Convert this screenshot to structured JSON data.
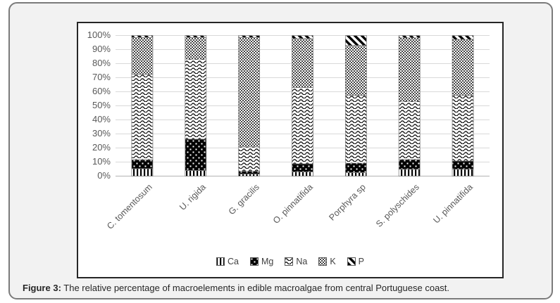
{
  "chart_data": {
    "type": "bar",
    "subtype": "stacked-100-percent",
    "title": "",
    "xlabel": "",
    "ylabel": "",
    "ylim": [
      0,
      100
    ],
    "grid": true,
    "legend_position": "bottom",
    "ytick_labels": [
      "100%",
      "90%",
      "80%",
      "70%",
      "60%",
      "50%",
      "40%",
      "30%",
      "20%",
      "10%",
      "0%"
    ],
    "categories": [
      "C. tomentosum",
      "U. rigida",
      "G. gracilis",
      "O. pinnatifida",
      "Porphyra sp",
      "S. polyschides",
      "U. pinnatifida"
    ],
    "series": [
      {
        "name": "Ca",
        "pattern": "vertical-stripes",
        "values": [
          5.3,
          4.0,
          1.5,
          3.0,
          2.5,
          4.9,
          4.9
        ]
      },
      {
        "name": "Mg",
        "pattern": "black-white-dots",
        "values": [
          6.3,
          22.3,
          2.0,
          5.7,
          6.7,
          6.8,
          5.8
        ]
      },
      {
        "name": "Na",
        "pattern": "wave",
        "values": [
          60.8,
          56.9,
          17.3,
          54.4,
          48.2,
          41.6,
          46.7
        ]
      },
      {
        "name": "K",
        "pattern": "dot-grid",
        "values": [
          26.2,
          15.4,
          77.8,
          34.7,
          35.5,
          45.0,
          39.8
        ]
      },
      {
        "name": "P",
        "pattern": "diagonal-stripes",
        "values": [
          1.4,
          1.4,
          1.4,
          2.2,
          7.1,
          1.7,
          2.8
        ]
      }
    ]
  },
  "caption": {
    "label": "Figure 3:",
    "text": " The relative percentage of macroelements in edible macroalgae from central Portuguese coast."
  },
  "colors": {
    "card_background": "#f2f2f2",
    "card_border": "#7b7b7b",
    "panel_border": "#262626",
    "gridline": "#d9d9d9",
    "axis_line": "#b3b3b3",
    "tick_text": "#595959",
    "segment_stroke": "#808080",
    "pattern_ink": "#000000"
  }
}
